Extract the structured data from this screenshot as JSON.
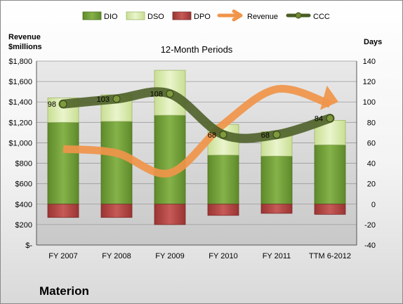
{
  "company": "Materion",
  "chart_data": {
    "type": "bar",
    "title": "12-Month Periods",
    "left_axis_label_line1": "Revenue",
    "left_axis_label_line2": "$millions",
    "right_axis_label": "Days",
    "categories": [
      "FY 2007",
      "FY 2008",
      "FY 2009",
      "FY 2010",
      "FY 2011",
      "TTM 6-2012"
    ],
    "left_ticks": [
      "$-",
      "$200",
      "$400",
      "$600",
      "$800",
      "$1,000",
      "$1,200",
      "$1,400",
      "$1,600",
      "$1,800"
    ],
    "right_ticks": [
      "-40",
      "-20",
      "0",
      "20",
      "40",
      "60",
      "80",
      "100",
      "120",
      "140"
    ],
    "ylim_left": [
      0,
      1800
    ],
    "ylim_right": [
      -40,
      140
    ],
    "series": [
      {
        "name": "DIO",
        "axis": "right",
        "kind": "stacked-bar",
        "values": [
          80,
          81,
          87,
          48,
          47,
          58
        ]
      },
      {
        "name": "DSO",
        "axis": "right",
        "kind": "stacked-bar",
        "values": [
          24,
          26,
          44,
          30,
          24,
          24
        ]
      },
      {
        "name": "DPO",
        "axis": "right",
        "kind": "negative-bar",
        "values": [
          -13,
          -13,
          -20,
          -11,
          -9,
          -10
        ]
      },
      {
        "name": "Revenue",
        "axis": "left",
        "kind": "arrow-line",
        "values": [
          940,
          900,
          705,
          1180,
          1525,
          1380
        ]
      },
      {
        "name": "CCC",
        "axis": "right",
        "kind": "line",
        "values": [
          98,
          103,
          108,
          68,
          68,
          84
        ]
      }
    ],
    "ccc_labels": [
      "98",
      "103",
      "108",
      "68",
      "68",
      "84"
    ],
    "legend_position": "top",
    "colors": {
      "DIO": "#76a03a",
      "DSO": "#d9eab0",
      "DPO": "#b84a48",
      "Revenue": "#f0954a",
      "CCC": "#4a5d24"
    }
  }
}
